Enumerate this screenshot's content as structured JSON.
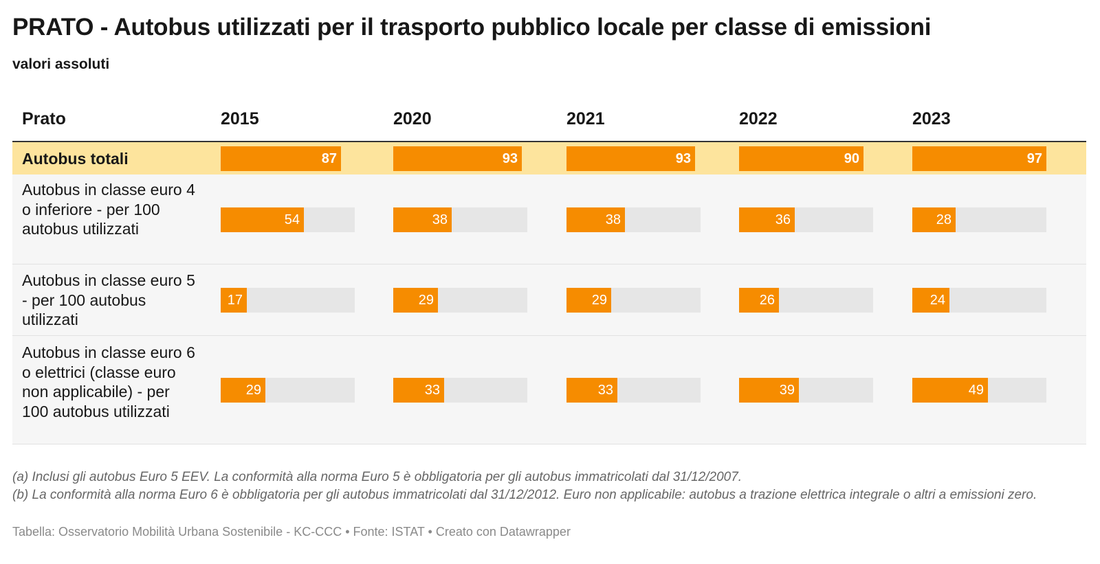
{
  "title": "PRATO - Autobus utilizzati per il trasporto pubblico locale per classe di emissioni",
  "subtitle": "valori assoluti",
  "colors": {
    "bar": "#f68c00",
    "track": "#e6e6e6",
    "highlight_row": "#fde49d",
    "alt_row": "#f6f6f6"
  },
  "chart_data": {
    "type": "table",
    "row_header": "Prato",
    "columns": [
      "2015",
      "2020",
      "2021",
      "2022",
      "2023"
    ],
    "rows": [
      {
        "label": "Autobus totali",
        "values": [
          87,
          93,
          93,
          90,
          97
        ],
        "scale_max": 97,
        "highlight": true
      },
      {
        "label": "Autobus in classe euro 4 o inferiore - per 100 autobus utilizzati",
        "values": [
          54,
          38,
          38,
          36,
          28
        ],
        "scale_max": 87,
        "highlight": false
      },
      {
        "label": "Autobus in classe euro 5 - per 100 autobus utilizzati",
        "values": [
          17,
          29,
          29,
          26,
          24
        ],
        "scale_max": 87,
        "highlight": false
      },
      {
        "label": "Autobus in classe euro 6 o elettrici (classe euro non applicabile) - per 100 autobus utilizzati",
        "values": [
          29,
          33,
          33,
          39,
          49
        ],
        "scale_max": 87,
        "highlight": false
      }
    ]
  },
  "notes": [
    "(a) Inclusi gli autobus Euro 5 EEV. La conformità alla norma Euro 5 è obbligatoria per gli autobus immatricolati dal 31/12/2007.",
    "(b) La conformità alla norma Euro 6 è obbligatoria per gli autobus immatricolati dal 31/12/2012. Euro non applicabile: autobus a trazione elettrica integrale o altri a emissioni zero."
  ],
  "footer": "Tabella: Osservatorio Mobilità Urbana Sostenibile - KC-CCC • Fonte: ISTAT • Creato con Datawrapper"
}
